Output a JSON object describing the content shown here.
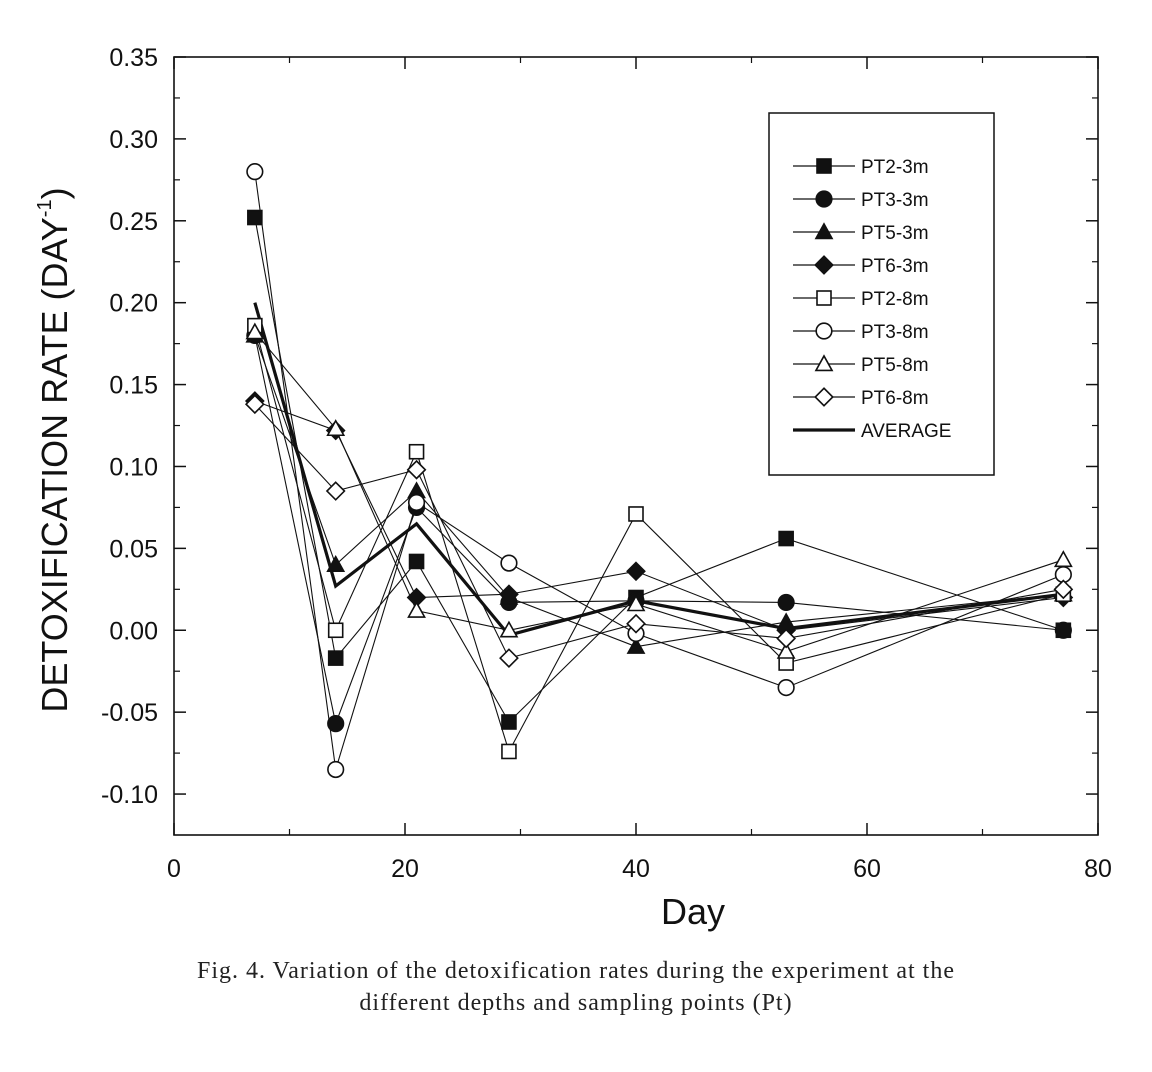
{
  "caption": {
    "line1": "Fig. 4. Variation of the detoxification rates during the experiment at the",
    "line2": "different depths and sampling points (Pt)"
  },
  "chart_data": {
    "type": "line",
    "title": "",
    "xlabel": "Day",
    "ylabel_main": "DETOXIFICATION RATE (DAY",
    "ylabel_sup": "-1",
    "ylabel_close": ")",
    "xlim": [
      0,
      80
    ],
    "ylim": [
      -0.125,
      0.35
    ],
    "x_ticks": [
      0,
      20,
      40,
      60,
      80
    ],
    "x_tick_labels": [
      "0",
      "20",
      "40",
      "60",
      "80"
    ],
    "y_ticks": [
      0.35,
      0.3,
      0.25,
      0.2,
      0.15,
      0.1,
      0.05,
      0.0,
      -0.05,
      -0.1
    ],
    "y_tick_labels": [
      "0.35",
      "0.30",
      "0.25",
      "0.20",
      "0.15",
      "0.10",
      "0.05",
      "0.00",
      "-0.05",
      "-0.10"
    ],
    "grid": false,
    "legend_position": "top-right",
    "series": [
      {
        "name": "PT2-3m",
        "marker": "square",
        "filled": true,
        "points": [
          [
            7,
            0.252
          ],
          [
            14,
            -0.017
          ],
          [
            21,
            0.042
          ],
          [
            29,
            -0.056
          ],
          [
            40,
            0.02
          ],
          [
            53,
            0.056
          ],
          [
            77,
            0.0
          ]
        ]
      },
      {
        "name": "PT3-3m",
        "marker": "circle",
        "filled": true,
        "points": [
          [
            7,
            0.18
          ],
          [
            14,
            -0.057
          ],
          [
            21,
            0.075
          ],
          [
            29,
            0.017
          ],
          [
            40,
            0.018
          ],
          [
            53,
            0.017
          ],
          [
            77,
            0.0
          ]
        ]
      },
      {
        "name": "PT5-3m",
        "marker": "triangle",
        "filled": true,
        "points": [
          [
            7,
            0.18
          ],
          [
            14,
            0.04
          ],
          [
            21,
            0.085
          ],
          [
            29,
            0.02
          ],
          [
            40,
            -0.01
          ],
          [
            53,
            0.005
          ],
          [
            77,
            0.022
          ]
        ]
      },
      {
        "name": "PT6-3m",
        "marker": "diamond",
        "filled": true,
        "points": [
          [
            7,
            0.14
          ],
          [
            14,
            0.122
          ],
          [
            21,
            0.02
          ],
          [
            29,
            0.022
          ],
          [
            40,
            0.036
          ],
          [
            53,
            0.0
          ],
          [
            77,
            0.02
          ]
        ]
      },
      {
        "name": "PT2-8m",
        "marker": "square",
        "filled": false,
        "points": [
          [
            7,
            0.186
          ],
          [
            14,
            0.0
          ],
          [
            21,
            0.109
          ],
          [
            29,
            -0.074
          ],
          [
            40,
            0.071
          ],
          [
            53,
            -0.02
          ],
          [
            77,
            0.022
          ]
        ]
      },
      {
        "name": "PT3-8m",
        "marker": "circle",
        "filled": false,
        "points": [
          [
            7,
            0.28
          ],
          [
            14,
            -0.085
          ],
          [
            21,
            0.078
          ],
          [
            29,
            0.041
          ],
          [
            40,
            -0.002
          ],
          [
            53,
            -0.035
          ],
          [
            77,
            0.034
          ]
        ]
      },
      {
        "name": "PT5-8m",
        "marker": "triangle",
        "filled": false,
        "points": [
          [
            7,
            0.182
          ],
          [
            14,
            0.123
          ],
          [
            21,
            0.012
          ],
          [
            29,
            0.0
          ],
          [
            40,
            0.016
          ],
          [
            53,
            -0.013
          ],
          [
            77,
            0.043
          ]
        ]
      },
      {
        "name": "PT6-8m",
        "marker": "diamond",
        "filled": false,
        "points": [
          [
            7,
            0.138
          ],
          [
            14,
            0.085
          ],
          [
            21,
            0.098
          ],
          [
            29,
            -0.017
          ],
          [
            40,
            0.004
          ],
          [
            53,
            -0.005
          ],
          [
            77,
            0.025
          ]
        ]
      },
      {
        "name": "AVERAGE",
        "marker": "none",
        "filled": false,
        "bold": true,
        "points": [
          [
            7,
            0.2
          ],
          [
            14,
            0.027
          ],
          [
            21,
            0.065
          ],
          [
            29,
            -0.003
          ],
          [
            40,
            0.018
          ],
          [
            53,
            0.001
          ],
          [
            77,
            0.022
          ]
        ]
      }
    ]
  }
}
